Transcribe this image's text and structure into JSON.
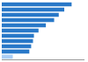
{
  "chart_data": {
    "type": "bar",
    "orientation": "horizontal",
    "categories": [
      null,
      null,
      null,
      null,
      null,
      null,
      null,
      null,
      null,
      null,
      null
    ],
    "values": [
      76,
      68,
      62,
      57,
      48,
      40,
      35,
      34,
      32,
      30,
      12
    ],
    "colors": [
      "#2878c8",
      "#2878c8",
      "#2878c8",
      "#2878c8",
      "#2878c8",
      "#2878c8",
      "#2878c8",
      "#2878c8",
      "#2878c8",
      "#2878c8",
      "#aacef5"
    ],
    "xlim": [
      0,
      90
    ],
    "grid": false,
    "tick_labels": false
  }
}
